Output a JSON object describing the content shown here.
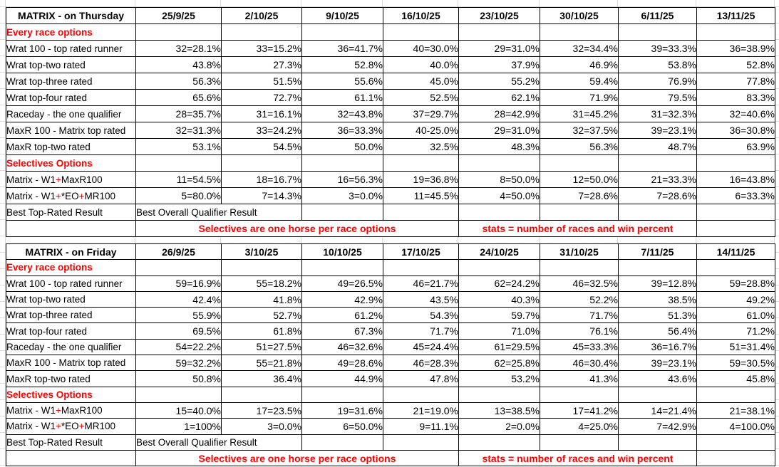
{
  "colors": {
    "peach": "#FADDC9",
    "blue": "#BDE2F6",
    "green": "#B2E7A3",
    "yellow": "#FFFF00",
    "red": "#FF0000",
    "gridline": "#DADADA",
    "border": "#000000"
  },
  "notes": {
    "selectives": "Selectives are one horse per race options",
    "stats": "stats = number of races and win percent"
  },
  "tables": [
    {
      "name": "thursday",
      "title": "MATRIX - on Thursday",
      "dates": [
        "25/9/25",
        "2/10/25",
        "9/10/25",
        "16/10/25",
        "23/10/25",
        "30/10/25",
        "6/11/25",
        "13/11/25"
      ],
      "rows": [
        {
          "type": "section",
          "label": "Every race options"
        },
        {
          "type": "data",
          "label": "Wrat 100 - top rated runner",
          "label_bg": "b",
          "cells": [
            [
              "32=28.1%",
              "w"
            ],
            [
              "33=15.2%",
              "w"
            ],
            [
              "36=41.7%",
              "w"
            ],
            [
              "40=30.0%",
              "b"
            ],
            [
              "29=31.0%",
              "w"
            ],
            [
              "32=34.4%",
              "w"
            ],
            [
              "39=33.3%",
              "y"
            ],
            [
              "36=38.9%",
              "w"
            ]
          ]
        },
        {
          "type": "data",
          "label": "Wrat top-two rated",
          "label_bg": "g",
          "cells": [
            [
              "43.8%",
              "w"
            ],
            [
              "27.3%",
              "w"
            ],
            [
              "52.8%",
              "g"
            ],
            [
              "40.0%",
              "g"
            ],
            [
              "37.9%",
              "w"
            ],
            [
              "46.9%",
              "w"
            ],
            [
              "53.8%",
              "g"
            ],
            [
              "52.8%",
              "w"
            ]
          ]
        },
        {
          "type": "data",
          "label": "Wrat top-three rated",
          "label_bg": "w",
          "cells": [
            [
              "56.3%",
              "w"
            ],
            [
              "51.5%",
              "w"
            ],
            [
              "55.6%",
              "w"
            ],
            [
              "45.0%",
              "w"
            ],
            [
              "55.2%",
              "w"
            ],
            [
              "59.4%",
              "w"
            ],
            [
              "76.9%",
              "w"
            ],
            [
              "77.8%",
              "w"
            ]
          ]
        },
        {
          "type": "data",
          "label": "Wrat top-four rated",
          "label_bg": "w",
          "cells": [
            [
              "65.6%",
              "w"
            ],
            [
              "72.7%",
              "w"
            ],
            [
              "61.1%",
              "w"
            ],
            [
              "52.5%",
              "w"
            ],
            [
              "62.1%",
              "w"
            ],
            [
              "71.9%",
              "w"
            ],
            [
              "79.5%",
              "w"
            ],
            [
              "83.3%",
              "w"
            ]
          ]
        },
        {
          "type": "data",
          "label": "Raceday - the one qualifier",
          "label_bg": "b",
          "cells": [
            [
              "28=35.7%",
              "b"
            ],
            [
              "31=16.1%",
              "w"
            ],
            [
              "32=43.8%",
              "b"
            ],
            [
              "37=29.7%",
              "w"
            ],
            [
              "28=42.9%",
              "b"
            ],
            [
              "31=45.2%",
              "b"
            ],
            [
              "31=32.3%",
              "w"
            ],
            [
              "32=40.6%",
              "b"
            ]
          ]
        },
        {
          "type": "data",
          "label": "MaxR 100 - Matrix top rated",
          "label_bg": "b",
          "cells": [
            [
              "32=31.3%",
              "w"
            ],
            [
              "33=24.2%",
              "y"
            ],
            [
              "36=33.3%",
              "w"
            ],
            [
              "40-25.0%",
              "w"
            ],
            [
              "29=31.0%",
              "w"
            ],
            [
              "32=37.5%",
              "w"
            ],
            [
              "39=23.1%",
              "w"
            ],
            [
              "36=30.8%",
              "w"
            ]
          ]
        },
        {
          "type": "data",
          "label": "MaxR top-two rated",
          "label_bg": "g",
          "cells": [
            [
              "53.1%",
              "g"
            ],
            [
              "54.5%",
              "g"
            ],
            [
              "50.0%",
              "w"
            ],
            [
              "32.5%",
              "w"
            ],
            [
              "48.3%",
              "g"
            ],
            [
              "56.3%",
              "g"
            ],
            [
              "48.7%",
              "w"
            ],
            [
              "63.9%",
              "g"
            ]
          ]
        },
        {
          "type": "section",
          "label": "Selectives Options"
        },
        {
          "type": "data",
          "label_parts": [
            {
              "t": "Matrix - W1"
            },
            {
              "t": "+",
              "red": true
            },
            {
              "t": "MaxR100"
            }
          ],
          "label_bg": "w",
          "cells": [
            [
              "11=54.5%",
              "y"
            ],
            [
              "18=16.7%",
              "w"
            ],
            [
              "16=56.3%",
              "y"
            ],
            [
              "19=36.8%",
              "w"
            ],
            [
              "8=50.0%",
              "y"
            ],
            [
              "12=50.0%",
              "y"
            ],
            [
              "21=33.3%",
              "y"
            ],
            [
              "16=43.8%",
              "y"
            ]
          ]
        },
        {
          "type": "data",
          "label_parts": [
            {
              "t": "Matrix - W1"
            },
            {
              "t": "+",
              "red": true
            },
            {
              "t": "*EO"
            },
            {
              "t": "+",
              "red": true
            },
            {
              "t": "MR100"
            }
          ],
          "label_bg": "w",
          "cells": [
            [
              "5=80.0%",
              "w"
            ],
            [
              "7=14.3%",
              "w"
            ],
            [
              "3=0.0%",
              "w"
            ],
            [
              "11=45.5%",
              "y"
            ],
            [
              "4=50.0%",
              "w"
            ],
            [
              "7=28.6%",
              "w"
            ],
            [
              "7=28.6%",
              "w"
            ],
            [
              "6=33.3%",
              "w"
            ]
          ]
        },
        {
          "type": "best",
          "label": "Best Top-Rated Result",
          "label_bg": "b",
          "merged_label": "Best Overall Qualifier Result",
          "tail": [
            "p",
            "p",
            "p",
            "p",
            "p",
            "w"
          ]
        },
        {
          "type": "notes",
          "tail_bordered": false
        }
      ]
    },
    {
      "name": "friday",
      "title": "MATRIX - on Friday",
      "dates": [
        "26/9/25",
        "3/10/25",
        "10/10/25",
        "17/10/25",
        "24/10/25",
        "31/10/25",
        "7/11/25",
        "14/11/25"
      ],
      "rows": [
        {
          "type": "section",
          "label": "Every race options"
        },
        {
          "type": "data",
          "label": "Wrat 100 - top rated runner",
          "label_bg": "b",
          "cells": [
            [
              "59=16.9%",
              "w"
            ],
            [
              "55=18.2%",
              "w"
            ],
            [
              "49=26.5%",
              "w"
            ],
            [
              "46=21.7%",
              "w"
            ],
            [
              "62=24.2%",
              "w"
            ],
            [
              "46=32.5%",
              "w"
            ],
            [
              "39=12.8%",
              "w"
            ],
            [
              "59=28.8%",
              "w"
            ]
          ]
        },
        {
          "type": "data",
          "label": "Wrat top-two rated",
          "label_bg": "g",
          "cells": [
            [
              "42.4%",
              "w"
            ],
            [
              "41.8%",
              "g"
            ],
            [
              "42.9%",
              "w"
            ],
            [
              "43.5%",
              "w"
            ],
            [
              "40.3%",
              "w"
            ],
            [
              "52.2%",
              "g"
            ],
            [
              "38.5%",
              "w"
            ],
            [
              "49.2%",
              "g"
            ]
          ]
        },
        {
          "type": "data",
          "label": "Wrat top-three rated",
          "label_bg": "w",
          "cells": [
            [
              "55.9%",
              "w"
            ],
            [
              "52.7%",
              "w"
            ],
            [
              "61.2%",
              "w"
            ],
            [
              "54.3%",
              "w"
            ],
            [
              "59.7%",
              "w"
            ],
            [
              "71.7%",
              "w"
            ],
            [
              "51.3%",
              "w"
            ],
            [
              "61.0%",
              "w"
            ]
          ]
        },
        {
          "type": "data",
          "label": "Wrat top-four rated",
          "label_bg": "w",
          "cells": [
            [
              "69.5%",
              "w"
            ],
            [
              "61.8%",
              "w"
            ],
            [
              "67.3%",
              "w"
            ],
            [
              "71.7%",
              "w"
            ],
            [
              "71.0%",
              "w"
            ],
            [
              "76.1%",
              "w"
            ],
            [
              "56.4%",
              "w"
            ],
            [
              "71.2%",
              "w"
            ]
          ]
        },
        {
          "type": "data",
          "label": "Raceday - the one qualifier",
          "label_bg": "b",
          "cells": [
            [
              "54=22.2%",
              "w"
            ],
            [
              "51=27.5%",
              "y"
            ],
            [
              "46=32.6%",
              "b"
            ],
            [
              "45=24.4%",
              "w"
            ],
            [
              "61=29.5%",
              "b"
            ],
            [
              "45=33.3%",
              "b"
            ],
            [
              "36=16.7%",
              "w"
            ],
            [
              "51=31.4%",
              "b"
            ]
          ]
        },
        {
          "type": "data",
          "label": "MaxR 100 - Matrix top rated",
          "label_bg": "b",
          "cells": [
            [
              "59=32.2%",
              "b"
            ],
            [
              "55=21.8%",
              "w"
            ],
            [
              "49=28.6%",
              "w"
            ],
            [
              "46=28.3%",
              "y"
            ],
            [
              "62=25.8%",
              "w"
            ],
            [
              "46=30.4%",
              "w"
            ],
            [
              "39=23.1%",
              "b"
            ],
            [
              "59=30.5%",
              "w"
            ]
          ]
        },
        {
          "type": "data",
          "label": "MaxR top-two rated",
          "label_bg": "g",
          "cells": [
            [
              "50.8%",
              "g"
            ],
            [
              "36.4%",
              "w"
            ],
            [
              "44.9%",
              "g"
            ],
            [
              "47.8%",
              "g"
            ],
            [
              "53.2%",
              "g"
            ],
            [
              "41.3%",
              "w"
            ],
            [
              "43.6%",
              "g"
            ],
            [
              "45.8%",
              "w"
            ]
          ]
        },
        {
          "type": "section",
          "label": "Selectives Options"
        },
        {
          "type": "data",
          "label_parts": [
            {
              "t": "Matrix - W1"
            },
            {
              "t": "+",
              "red": true
            },
            {
              "t": "MaxR100"
            }
          ],
          "label_bg": "w",
          "cells": [
            [
              "15=40.0%",
              "y"
            ],
            [
              "17=23.5%",
              "w"
            ],
            [
              "19=31.6%",
              "w"
            ],
            [
              "21=19.0%",
              "w"
            ],
            [
              "13=38.5%",
              "y"
            ],
            [
              "17=41.2%",
              "y"
            ],
            [
              "14=21.4%",
              "w"
            ],
            [
              "21=38.1%",
              "y"
            ]
          ]
        },
        {
          "type": "data",
          "label_parts": [
            {
              "t": "Matrix - W1"
            },
            {
              "t": "+",
              "red": true
            },
            {
              "t": "*EO"
            },
            {
              "t": "+",
              "red": true
            },
            {
              "t": "MR100"
            }
          ],
          "label_bg": "w",
          "cells": [
            [
              "1=100%",
              "w"
            ],
            [
              "3=0.0%",
              "w"
            ],
            [
              "6=50.0%",
              "y"
            ],
            [
              "9=11.1%",
              "w"
            ],
            [
              "2=0.0%",
              "w"
            ],
            [
              "4=25.0%",
              "w"
            ],
            [
              "7=42.9%",
              "y"
            ],
            [
              "4=100.0%",
              "w"
            ]
          ]
        },
        {
          "type": "best",
          "label": "Best Top-Rated Result",
          "label_bg": "b",
          "merged_label": "Best Overall Qualifier Result",
          "tail": [
            "p",
            "p",
            "p",
            "p",
            "p",
            "p"
          ]
        },
        {
          "type": "notes",
          "tail_bordered": true
        }
      ]
    }
  ]
}
